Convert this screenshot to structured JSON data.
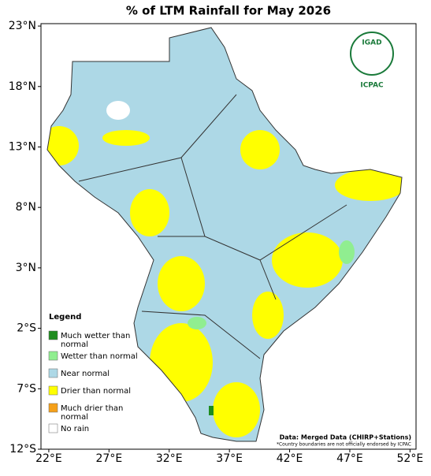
{
  "title": "% of LTM Rainfall for May 2026",
  "map": {
    "lon_range": [
      21.35,
      52.5
    ],
    "lat_range": [
      23.2,
      -12
    ],
    "lon_ticks": [
      {
        "value": 22,
        "label": "22°E"
      },
      {
        "value": 27,
        "label": "27°E"
      },
      {
        "value": 32,
        "label": "32°E"
      },
      {
        "value": 37,
        "label": "37°E"
      },
      {
        "value": 42,
        "label": "42°E"
      },
      {
        "value": 47,
        "label": "47°E"
      },
      {
        "value": 52,
        "label": "52°E"
      }
    ],
    "lat_ticks": [
      {
        "value": 23,
        "label": "23°N"
      },
      {
        "value": 18,
        "label": "18°N"
      },
      {
        "value": 13,
        "label": "13°N"
      },
      {
        "value": 8,
        "label": "8°N"
      },
      {
        "value": 3,
        "label": "3°N"
      },
      {
        "value": -2,
        "label": "2°S"
      },
      {
        "value": -7,
        "label": "7°S"
      },
      {
        "value": -12,
        "label": "12°S"
      }
    ]
  },
  "legend": {
    "title": "Legend",
    "items": [
      {
        "label": "Much wetter than normal",
        "color": "#1e8c1e"
      },
      {
        "label": "Wetter than normal",
        "color": "#90ee90"
      },
      {
        "label": "Near normal",
        "color": "#add8e6"
      },
      {
        "label": "Drier than normal",
        "color": "#ffff00"
      },
      {
        "label": "Much drier than normal",
        "color": "#f5a01a"
      },
      {
        "label": "No rain",
        "color": "#ffffff"
      }
    ]
  },
  "logo": {
    "name": "IGAD",
    "org": "ICPAC"
  },
  "source": "Data: Merged Data (CHIRP+Stations)",
  "footnote": "*Country boundaries are not officially endorsed by ICPAC"
}
